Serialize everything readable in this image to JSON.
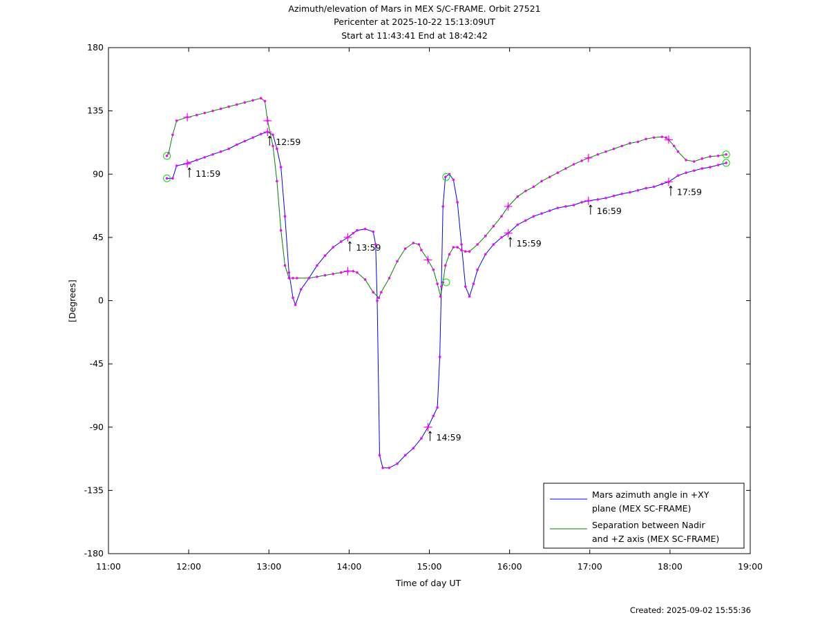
{
  "chart_data": {
    "type": "line",
    "title_lines": [
      "Azimuth/elevation of Mars in MEX S/C-FRAME.  Orbit 27521",
      "Pericenter at 2025-10-22 15:13:09UT",
      "Start at 11:43:41 End at 18:42:42"
    ],
    "xlabel": "Time of day UT",
    "ylabel": "[Degrees]",
    "xlim": [
      11,
      19
    ],
    "ylim": [
      -180,
      180
    ],
    "xticks": [
      11,
      12,
      13,
      14,
      15,
      16,
      17,
      18,
      19
    ],
    "xtick_labels": [
      "11:00",
      "12:00",
      "13:00",
      "14:00",
      "15:00",
      "16:00",
      "17:00",
      "18:00",
      "19:00"
    ],
    "yticks": [
      180,
      135,
      90,
      45,
      0,
      -45,
      -90,
      -135,
      -180
    ],
    "ytick_labels": [
      "180",
      "135",
      "90",
      "45",
      "0",
      "-45",
      "-90",
      "-135",
      "-180"
    ],
    "legend_position": "bottom-right",
    "series": [
      {
        "name": "Mars azimuth angle in +XY plane (MEX SC-FRAME)",
        "legend_lines": [
          "Mars azimuth angle in +XY",
          "plane (MEX SC-FRAME)"
        ],
        "color": "#0000ff",
        "x": [
          11.728,
          11.8,
          11.85,
          11.983,
          12.0,
          12.1,
          12.2,
          12.3,
          12.4,
          12.5,
          12.6,
          12.7,
          12.8,
          12.9,
          12.983,
          13.05,
          13.1,
          13.15,
          13.2,
          13.25,
          13.3,
          13.33,
          13.4,
          13.5,
          13.6,
          13.7,
          13.8,
          13.9,
          13.983,
          14.05,
          14.1,
          14.2,
          14.3,
          14.33,
          14.35,
          14.38,
          14.42,
          14.5,
          14.6,
          14.7,
          14.8,
          14.9,
          14.983,
          15.05,
          15.1,
          15.13,
          15.15,
          15.17,
          15.2,
          15.25,
          15.3,
          15.35,
          15.4,
          15.45,
          15.5,
          15.55,
          15.6,
          15.7,
          15.8,
          15.9,
          15.983,
          16.1,
          16.2,
          16.3,
          16.4,
          16.5,
          16.6,
          16.7,
          16.8,
          16.9,
          16.983,
          17.1,
          17.2,
          17.3,
          17.4,
          17.5,
          17.6,
          17.7,
          17.8,
          17.9,
          17.983,
          18.1,
          18.2,
          18.3,
          18.4,
          18.5,
          18.6,
          18.7
        ],
        "y": [
          87,
          87,
          96,
          97.5,
          98,
          100,
          102,
          104,
          106,
          108,
          111,
          113.5,
          116,
          118.5,
          120,
          118,
          108,
          95,
          60,
          20,
          2,
          -3,
          8,
          16,
          25,
          32,
          38,
          42,
          45,
          48,
          50,
          51,
          49,
          40,
          0,
          -110,
          -119,
          -119,
          -116,
          -110,
          -105,
          -98,
          -90,
          -82,
          -76,
          -40,
          10,
          67,
          88,
          90,
          86,
          70,
          40,
          10,
          3,
          12,
          22,
          33,
          40,
          45,
          48,
          54,
          57,
          60,
          62,
          64,
          66,
          67,
          68,
          70,
          71,
          72,
          73,
          74.5,
          76,
          77,
          78.5,
          80,
          81,
          83,
          84.5,
          89,
          91,
          92.5,
          94,
          95,
          96.5,
          98
        ]
      },
      {
        "name": "Separation between Nadir and +Z axis (MEX SC-FRAME)",
        "legend_lines": [
          "Separation between Nadir",
          "and +Z axis (MEX SC-FRAME)"
        ],
        "color": "#008000",
        "x": [
          11.728,
          11.75,
          11.8,
          11.85,
          11.983,
          12.1,
          12.2,
          12.3,
          12.4,
          12.5,
          12.6,
          12.7,
          12.8,
          12.9,
          12.95,
          12.983,
          13.05,
          13.1,
          13.15,
          13.2,
          13.25,
          13.3,
          13.35,
          13.5,
          13.6,
          13.7,
          13.8,
          13.9,
          13.983,
          14.05,
          14.1,
          14.2,
          14.3,
          14.37,
          14.4,
          14.5,
          14.6,
          14.7,
          14.8,
          14.87,
          14.9,
          14.983,
          15.05,
          15.1,
          15.14,
          15.17,
          15.2,
          15.25,
          15.3,
          15.35,
          15.4,
          15.45,
          15.5,
          15.6,
          15.7,
          15.8,
          15.9,
          15.983,
          16.1,
          16.2,
          16.3,
          16.4,
          16.5,
          16.6,
          16.7,
          16.8,
          16.9,
          16.983,
          17.1,
          17.2,
          17.3,
          17.4,
          17.5,
          17.6,
          17.7,
          17.8,
          17.9,
          17.95,
          17.983,
          18.05,
          18.1,
          18.2,
          18.3,
          18.4,
          18.5,
          18.6,
          18.7
        ],
        "y": [
          103,
          105,
          118,
          128,
          130.5,
          132,
          133.5,
          135,
          136.5,
          138,
          139.5,
          141,
          142.5,
          144,
          142,
          128,
          110,
          85,
          50,
          25,
          16,
          16,
          16,
          16,
          17,
          18,
          19,
          20,
          21,
          21,
          20,
          15,
          6,
          2,
          6,
          16,
          28,
          37,
          41,
          40,
          36,
          29,
          22,
          12,
          3,
          13,
          25,
          33,
          38,
          38,
          36,
          35,
          35,
          40,
          46,
          53,
          60,
          67,
          74,
          78,
          81,
          85,
          88,
          91,
          94,
          97,
          99.5,
          101.5,
          104,
          106,
          108,
          110,
          112,
          113,
          115,
          116,
          116.5,
          116,
          114.5,
          110,
          106,
          100,
          99,
          101,
          102.5,
          103,
          104
        ]
      }
    ],
    "markers": {
      "plus_points": [
        {
          "series": 0,
          "x": 11.983,
          "y": 97.5
        },
        {
          "series": 0,
          "x": 12.983,
          "y": 120
        },
        {
          "series": 0,
          "x": 13.983,
          "y": 45
        },
        {
          "series": 0,
          "x": 14.983,
          "y": -90
        },
        {
          "series": 0,
          "x": 15.983,
          "y": 48
        },
        {
          "series": 0,
          "x": 16.983,
          "y": 71
        },
        {
          "series": 0,
          "x": 17.983,
          "y": 84.5
        },
        {
          "series": 1,
          "x": 11.983,
          "y": 130.5
        },
        {
          "series": 1,
          "x": 12.983,
          "y": 128
        },
        {
          "series": 1,
          "x": 13.983,
          "y": 21
        },
        {
          "series": 1,
          "x": 14.983,
          "y": 29
        },
        {
          "series": 1,
          "x": 15.983,
          "y": 67
        },
        {
          "series": 1,
          "x": 16.983,
          "y": 101.5
        },
        {
          "series": 1,
          "x": 17.983,
          "y": 114.5
        }
      ],
      "circle_points": [
        {
          "x": 11.728,
          "y": 87
        },
        {
          "x": 11.728,
          "y": 103
        },
        {
          "x": 18.7,
          "y": 98
        },
        {
          "x": 18.7,
          "y": 104
        },
        {
          "x": 15.21,
          "y": 88
        },
        {
          "x": 15.21,
          "y": 13
        }
      ]
    },
    "annotations": [
      {
        "text": "11:59",
        "x": 11.983,
        "y": 97.5
      },
      {
        "text": "12:59",
        "x": 12.983,
        "y": 120
      },
      {
        "text": "13:59",
        "x": 13.983,
        "y": 45
      },
      {
        "text": "14:59",
        "x": 14.983,
        "y": -90
      },
      {
        "text": "15:59",
        "x": 15.983,
        "y": 48
      },
      {
        "text": "16:59",
        "x": 16.983,
        "y": 71
      },
      {
        "text": "17:59",
        "x": 17.983,
        "y": 84.5
      }
    ],
    "created_text": "Created: 2025-09-02 15:55:36",
    "colors": {
      "marker_dot": "#ff00ff",
      "marker_plus": "#ff00ff",
      "marker_circle": "#00dd00"
    }
  }
}
